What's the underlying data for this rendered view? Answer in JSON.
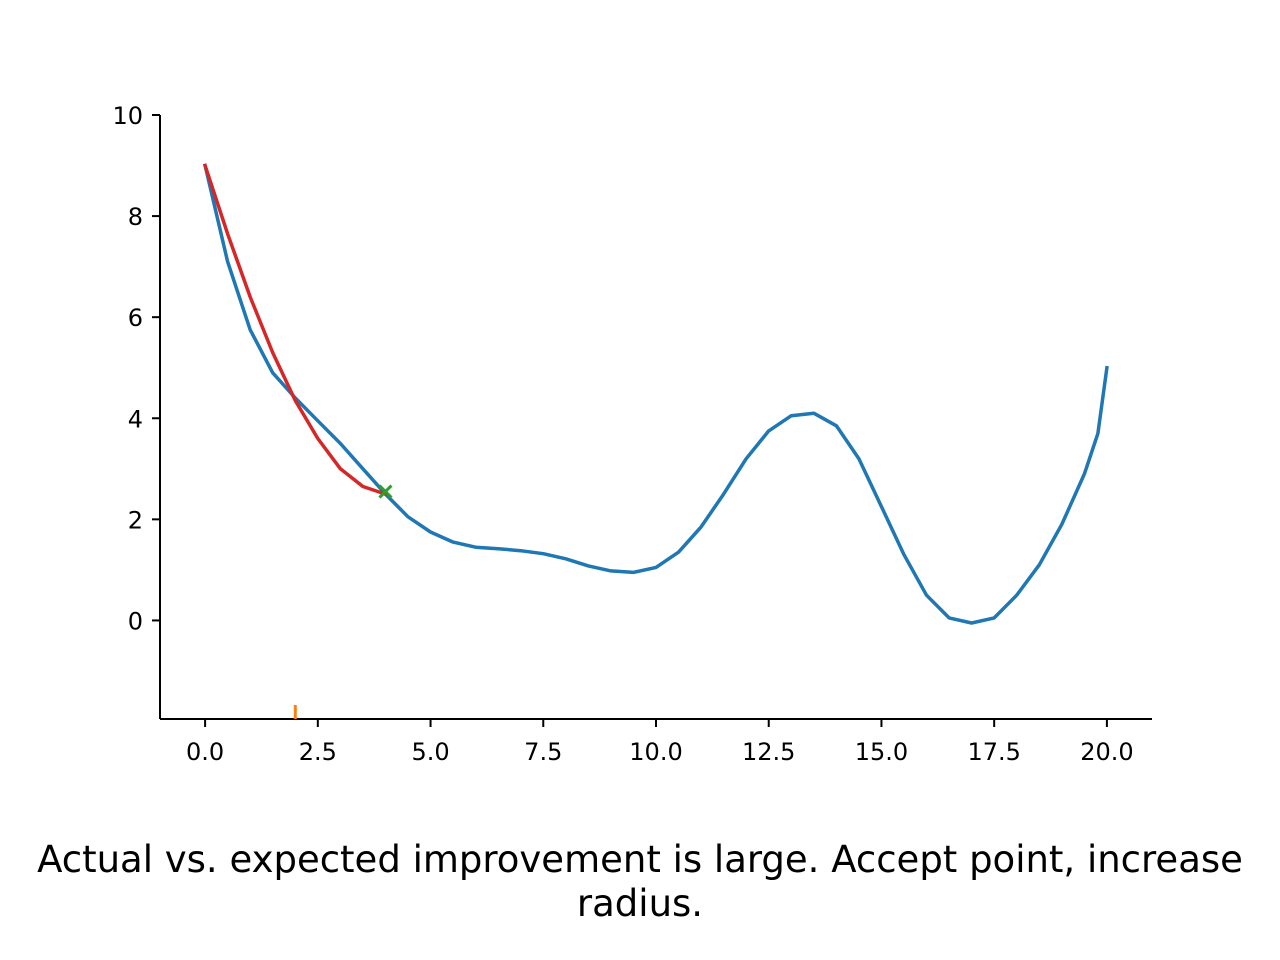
{
  "chart_data": {
    "type": "line",
    "title": "",
    "xlabel": "",
    "ylabel": "",
    "xlim": [
      -1.0,
      21.0
    ],
    "ylim": [
      -1.95,
      10.0
    ],
    "x_ticks": [
      0.0,
      2.5,
      5.0,
      7.5,
      10.0,
      12.5,
      15.0,
      17.5,
      20.0
    ],
    "x_tick_labels": [
      "0.0",
      "2.5",
      "5.0",
      "7.5",
      "10.0",
      "12.5",
      "15.0",
      "17.5",
      "20.0"
    ],
    "y_ticks": [
      0,
      2,
      4,
      6,
      8,
      10
    ],
    "y_tick_labels": [
      "0",
      "2",
      "4",
      "6",
      "8",
      "10"
    ],
    "grid": false,
    "series": [
      {
        "kind": "line",
        "color": "#1f77b4",
        "x": [
          0,
          0.5,
          1,
          1.5,
          2,
          2.5,
          3,
          3.5,
          4,
          4.5,
          5,
          5.5,
          6,
          6.5,
          7,
          7.5,
          8,
          8.5,
          9,
          9.5,
          10,
          10.5,
          11,
          11.5,
          12,
          12.5,
          13,
          13.5,
          14,
          14.5,
          15,
          15.5,
          16,
          16.5,
          17,
          17.5,
          18,
          18.5,
          19,
          19.5,
          19.8,
          20
        ],
        "y": [
          9.0,
          7.1,
          5.75,
          4.9,
          4.4,
          3.95,
          3.5,
          3.0,
          2.5,
          2.05,
          1.75,
          1.55,
          1.45,
          1.42,
          1.38,
          1.32,
          1.22,
          1.08,
          0.98,
          0.95,
          1.05,
          1.35,
          1.85,
          2.5,
          3.2,
          3.75,
          4.05,
          4.1,
          3.85,
          3.2,
          2.25,
          1.3,
          0.5,
          0.05,
          -0.05,
          0.05,
          0.5,
          1.1,
          1.9,
          2.9,
          3.7,
          5.0
        ]
      },
      {
        "kind": "line",
        "color": "#d62728",
        "x": [
          0,
          0.5,
          1,
          1.5,
          2,
          2.5,
          3,
          3.5,
          4
        ],
        "y": [
          9.0,
          7.65,
          6.4,
          5.3,
          4.35,
          3.6,
          3.0,
          2.65,
          2.5
        ]
      },
      {
        "kind": "marker",
        "marker": "x",
        "color": "#2ca02c",
        "x": [
          4.0
        ],
        "y": [
          2.55
        ]
      },
      {
        "kind": "marker",
        "marker": "vline",
        "color": "#ff7f0e",
        "x": [
          2.0
        ],
        "y": [
          -1.95
        ]
      }
    ],
    "caption": "Actual vs. expected improvement is large. Accept point, increase radius."
  }
}
